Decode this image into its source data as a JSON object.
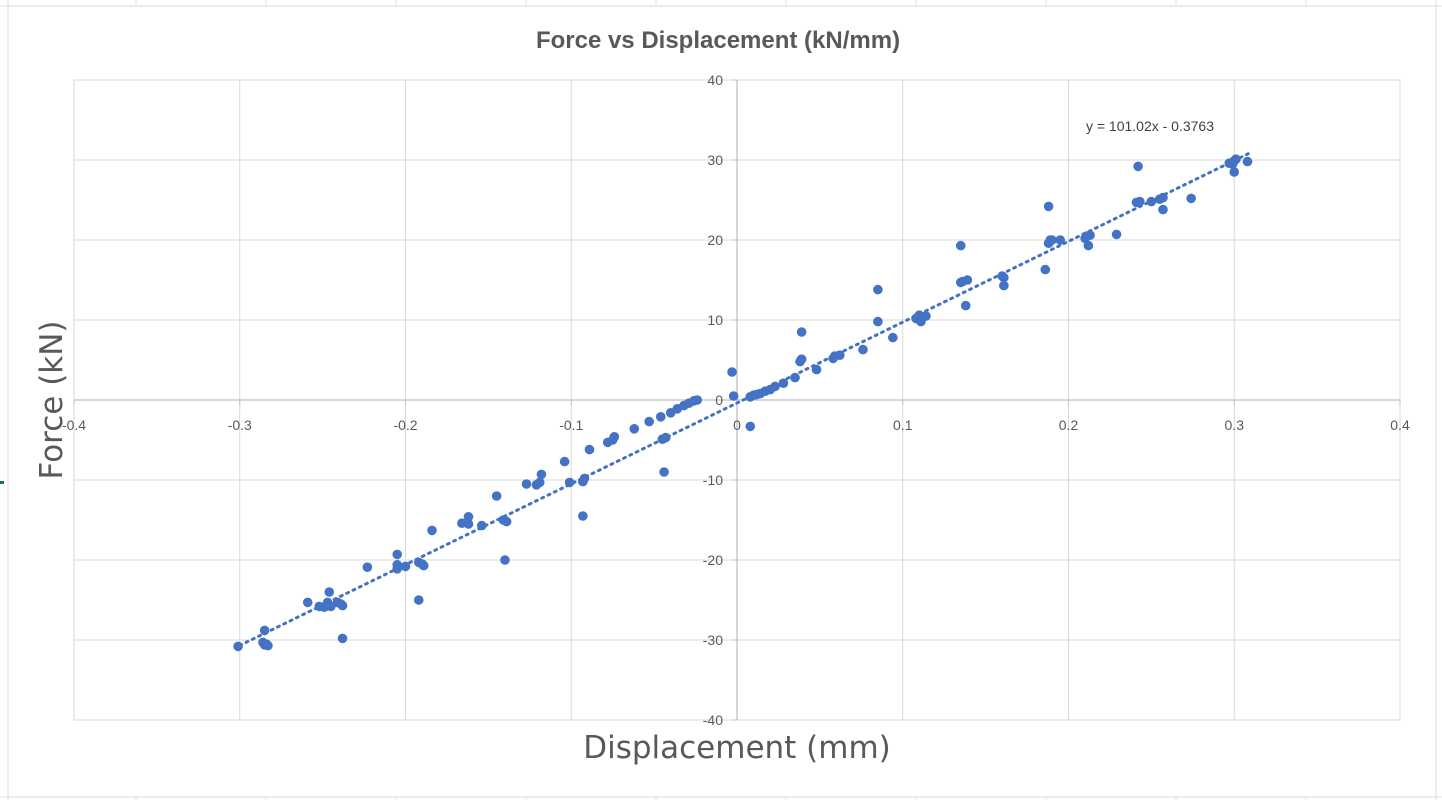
{
  "chart_data": {
    "type": "scatter",
    "title": "Force vs Displacement (kN/mm)",
    "xlabel": "Displacement (mm)",
    "ylabel": "Force (kN)",
    "xlim": [
      -0.4,
      0.4
    ],
    "ylim": [
      -40,
      40
    ],
    "x_ticks": [
      -0.4,
      -0.3,
      -0.2,
      -0.1,
      0,
      0.1,
      0.2,
      0.3,
      0.4
    ],
    "y_ticks": [
      -40,
      -30,
      -20,
      -10,
      0,
      10,
      20,
      30,
      40
    ],
    "x_tick_labels": [
      "-0.4",
      "-0.3",
      "-0.2",
      "-0.1",
      "0",
      "0.1",
      "0.2",
      "0.3",
      "0.4"
    ],
    "y_tick_labels": [
      "-40",
      "-30",
      "-20",
      "-10",
      "0",
      "10",
      "20",
      "30",
      "40"
    ],
    "grid": true,
    "legend": "none",
    "colors": {
      "series": "#4472c4",
      "grid": "#d9d9d9",
      "axis": "#bfbfbf",
      "text": "#595959"
    },
    "trendline": {
      "type": "linear",
      "slope": 101.02,
      "intercept": -0.3763,
      "label": "y = 101.02x - 0.3763",
      "x_range": [
        -0.3,
        0.31
      ],
      "style": "dotted"
    },
    "series": [
      {
        "marker": "circle",
        "points": [
          [
            -0.301,
            -30.8
          ],
          [
            -0.286,
            -30.3
          ],
          [
            -0.285,
            -30.6
          ],
          [
            -0.284,
            -30.5
          ],
          [
            -0.283,
            -30.7
          ],
          [
            -0.285,
            -28.8
          ],
          [
            -0.259,
            -25.3
          ],
          [
            -0.252,
            -25.8
          ],
          [
            -0.249,
            -25.9
          ],
          [
            -0.247,
            -25.3
          ],
          [
            -0.246,
            -24.0
          ],
          [
            -0.245,
            -25.8
          ],
          [
            -0.241,
            -25.3
          ],
          [
            -0.239,
            -25.5
          ],
          [
            -0.238,
            -25.7
          ],
          [
            -0.238,
            -29.8
          ],
          [
            -0.223,
            -20.9
          ],
          [
            -0.205,
            -19.3
          ],
          [
            -0.205,
            -20.6
          ],
          [
            -0.205,
            -21.1
          ],
          [
            -0.2,
            -20.8
          ],
          [
            -0.192,
            -20.3
          ],
          [
            -0.19,
            -20.5
          ],
          [
            -0.189,
            -20.7
          ],
          [
            -0.192,
            -25.0
          ],
          [
            -0.184,
            -16.3
          ],
          [
            -0.166,
            -15.4
          ],
          [
            -0.162,
            -14.6
          ],
          [
            -0.162,
            -15.5
          ],
          [
            -0.154,
            -15.7
          ],
          [
            -0.145,
            -12.0
          ],
          [
            -0.141,
            -15.0
          ],
          [
            -0.139,
            -15.2
          ],
          [
            -0.14,
            -20.0
          ],
          [
            -0.127,
            -10.5
          ],
          [
            -0.121,
            -10.6
          ],
          [
            -0.119,
            -10.3
          ],
          [
            -0.118,
            -9.3
          ],
          [
            -0.104,
            -7.7
          ],
          [
            -0.101,
            -10.3
          ],
          [
            -0.093,
            -10.2
          ],
          [
            -0.092,
            -9.8
          ],
          [
            -0.093,
            -14.5
          ],
          [
            -0.089,
            -6.2
          ],
          [
            -0.078,
            -5.3
          ],
          [
            -0.075,
            -5.0
          ],
          [
            -0.074,
            -4.6
          ],
          [
            -0.062,
            -3.6
          ],
          [
            -0.053,
            -2.7
          ],
          [
            -0.046,
            -2.1
          ],
          [
            -0.045,
            -4.9
          ],
          [
            -0.043,
            -4.7
          ],
          [
            -0.044,
            -9.0
          ],
          [
            -0.04,
            -1.6
          ],
          [
            -0.036,
            -1.1
          ],
          [
            -0.032,
            -0.7
          ],
          [
            -0.029,
            -0.4
          ],
          [
            -0.026,
            -0.1
          ],
          [
            -0.024,
            0.0
          ],
          [
            -0.003,
            3.5
          ],
          [
            -0.002,
            0.5
          ],
          [
            0.008,
            0.4
          ],
          [
            0.01,
            0.6
          ],
          [
            0.012,
            0.7
          ],
          [
            0.014,
            0.8
          ],
          [
            0.017,
            1.1
          ],
          [
            0.02,
            1.3
          ],
          [
            0.023,
            1.7
          ],
          [
            0.028,
            2.1
          ],
          [
            0.035,
            2.8
          ],
          [
            0.008,
            -3.3
          ],
          [
            0.038,
            4.8
          ],
          [
            0.039,
            5.1
          ],
          [
            0.039,
            8.5
          ],
          [
            0.048,
            3.8
          ],
          [
            0.058,
            5.2
          ],
          [
            0.059,
            5.5
          ],
          [
            0.062,
            5.6
          ],
          [
            0.076,
            6.3
          ],
          [
            0.085,
            9.8
          ],
          [
            0.085,
            13.8
          ],
          [
            0.094,
            7.8
          ],
          [
            0.108,
            10.2
          ],
          [
            0.11,
            10.6
          ],
          [
            0.111,
            9.8
          ],
          [
            0.114,
            10.5
          ],
          [
            0.135,
            14.7
          ],
          [
            0.136,
            14.8
          ],
          [
            0.139,
            15.0
          ],
          [
            0.135,
            19.3
          ],
          [
            0.138,
            11.8
          ],
          [
            0.16,
            15.5
          ],
          [
            0.161,
            15.3
          ],
          [
            0.161,
            14.3
          ],
          [
            0.186,
            16.3
          ],
          [
            0.188,
            19.6
          ],
          [
            0.189,
            20.0
          ],
          [
            0.19,
            20.0
          ],
          [
            0.195,
            20.0
          ],
          [
            0.188,
            24.2
          ],
          [
            0.21,
            20.2
          ],
          [
            0.211,
            20.5
          ],
          [
            0.212,
            19.3
          ],
          [
            0.213,
            20.6
          ],
          [
            0.229,
            20.7
          ],
          [
            0.241,
            24.7
          ],
          [
            0.243,
            24.8
          ],
          [
            0.242,
            29.2
          ],
          [
            0.25,
            24.8
          ],
          [
            0.255,
            25.1
          ],
          [
            0.257,
            25.3
          ],
          [
            0.257,
            23.8
          ],
          [
            0.274,
            25.2
          ],
          [
            0.297,
            29.6
          ],
          [
            0.3,
            29.9
          ],
          [
            0.301,
            30.1
          ],
          [
            0.299,
            29.5
          ],
          [
            0.3,
            28.5
          ],
          [
            0.308,
            29.8
          ]
        ]
      }
    ]
  }
}
